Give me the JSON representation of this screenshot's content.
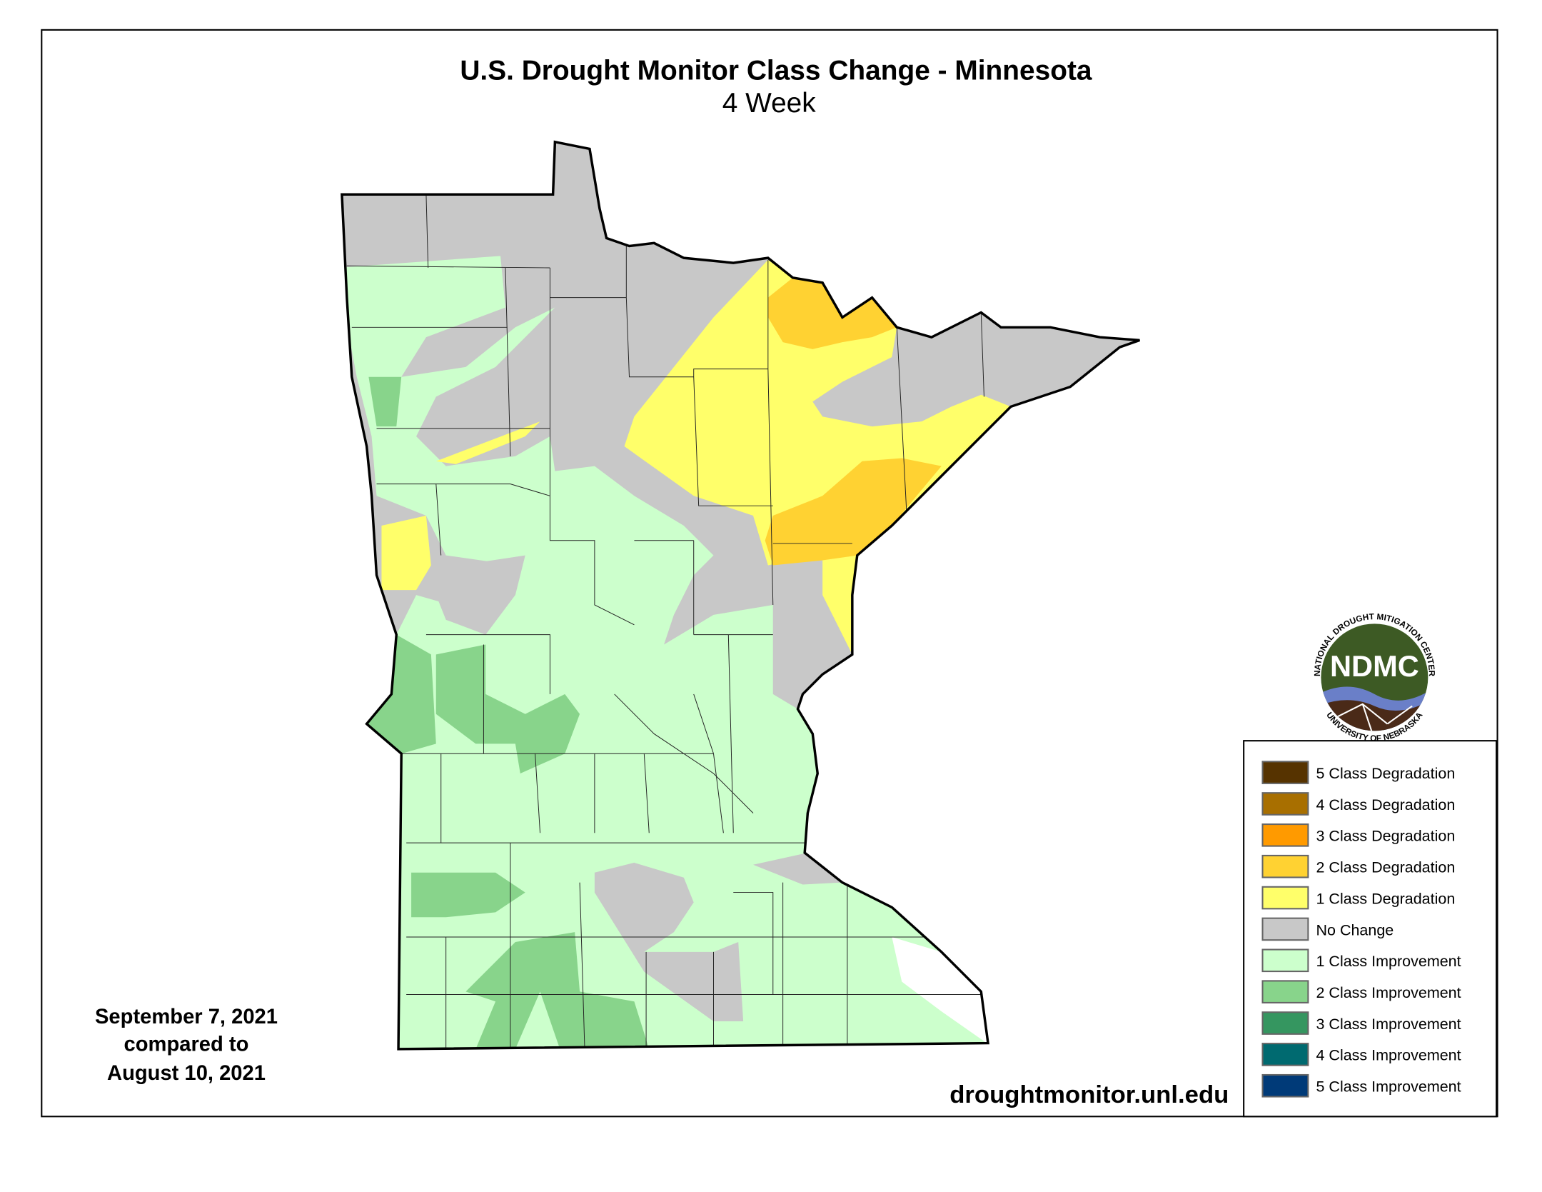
{
  "title": "U.S. Drought Monitor Class Change - Minnesota",
  "subtitle": "4 Week",
  "date": {
    "line1": "September 7, 2021",
    "line2": "compared to",
    "line3": "August 10, 2021"
  },
  "url": "droughtmonitor.unl.edu",
  "logo": {
    "name": "NDMC",
    "top_text": "NATIONAL DROUGHT MITIGATION CENTER",
    "bottom_text": "UNIVERSITY OF NEBRASKA"
  },
  "legend": [
    {
      "label": "5 Class Degradation",
      "color": "#563300"
    },
    {
      "label": "4 Class Degradation",
      "color": "#a86f00"
    },
    {
      "label": "3 Class Degradation",
      "color": "#ff9a00"
    },
    {
      "label": "2 Class Degradation",
      "color": "#ffd232"
    },
    {
      "label": "1 Class Degradation",
      "color": "#ffff6a"
    },
    {
      "label": "No Change",
      "color": "#c8c8c8"
    },
    {
      "label": "1 Class Improvement",
      "color": "#ccffcc"
    },
    {
      "label": "2 Class Improvement",
      "color": "#88d48b"
    },
    {
      "label": "3 Class Improvement",
      "color": "#359660"
    },
    {
      "label": "4 Class Improvement",
      "color": "#006a70"
    },
    {
      "label": "5 Class Improvement",
      "color": "#003a78"
    }
  ]
}
